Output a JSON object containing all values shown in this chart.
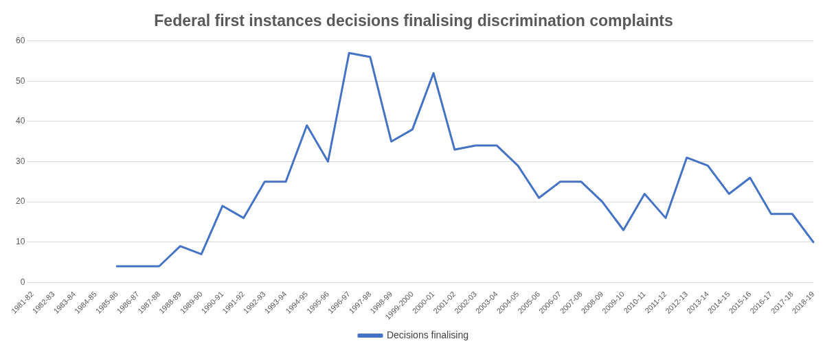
{
  "chart_data": {
    "type": "line",
    "title": "Federal first instances decisions finalising discrimination complaints",
    "categories": [
      "1981-82",
      "1982-83",
      "1983-84",
      "1984-85",
      "1985-86",
      "1986-87",
      "1987-88",
      "1988-89",
      "1989-90",
      "1990-91",
      "1991-92",
      "1992-93",
      "1993-94",
      "1994-95",
      "1995-96",
      "1996-97",
      "1997-98",
      "1998-99",
      "1999-2000",
      "2000-01",
      "2001-02",
      "2002-03",
      "2003-04",
      "2004-05",
      "2005-06",
      "2006-07",
      "2007-08",
      "2008-09",
      "2009-10",
      "2010-11",
      "2011-12",
      "2012-13",
      "2013-14",
      "2014-15",
      "2015-16",
      "2016-17",
      "2017-18",
      "2018-19"
    ],
    "series": [
      {
        "name": "Decisions finalising",
        "color": "#4472c4",
        "values": [
          null,
          null,
          null,
          null,
          4,
          4,
          4,
          9,
          7,
          19,
          16,
          25,
          25,
          39,
          30,
          57,
          56,
          35,
          38,
          52,
          33,
          34,
          34,
          29,
          21,
          25,
          25,
          20,
          13,
          22,
          16,
          31,
          29,
          22,
          26,
          17,
          17,
          10
        ]
      }
    ],
    "ylim": [
      0,
      60
    ],
    "yticks": [
      0,
      10,
      20,
      30,
      40,
      50,
      60
    ],
    "grid": "y",
    "legend": "bottom",
    "marker": "none",
    "line_style": "solid"
  }
}
